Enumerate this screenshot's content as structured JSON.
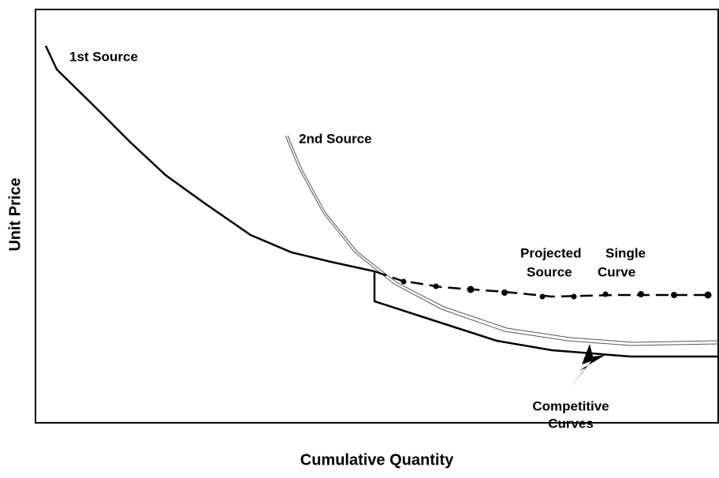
{
  "y_axis_label": "Unit Price",
  "x_axis_label": "Cumulative Quantity",
  "annotations": {
    "first_source": "1st Source",
    "second_source": "2nd Source",
    "projected": "Projected",
    "single": "Single",
    "source": "Source",
    "curve": "Curve",
    "competitive": "Competitive",
    "curves": "Curves"
  }
}
